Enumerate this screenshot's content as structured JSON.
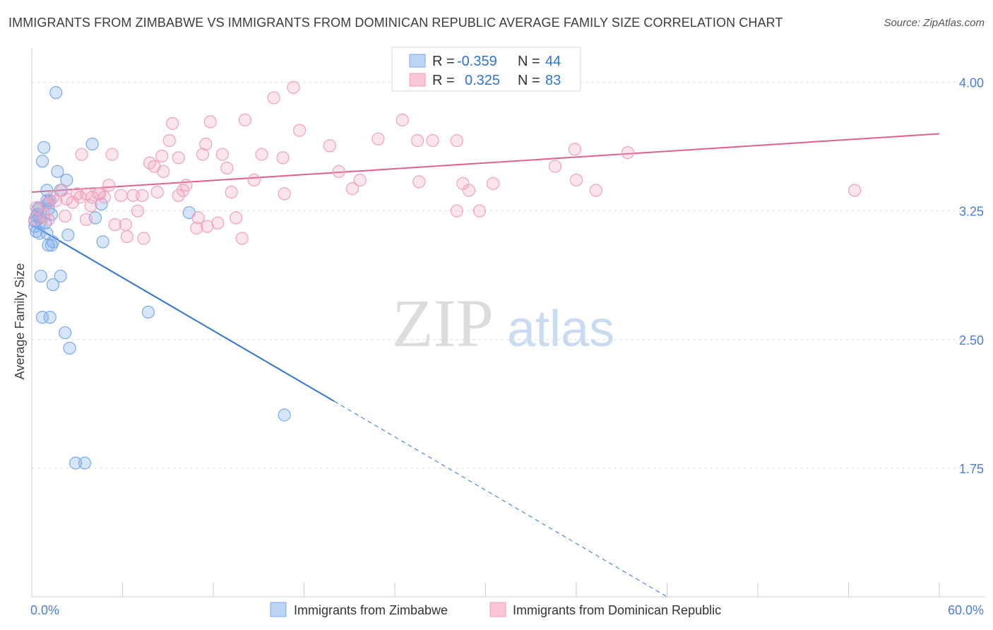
{
  "title": "IMMIGRANTS FROM ZIMBABWE VS IMMIGRANTS FROM DOMINICAN REPUBLIC AVERAGE FAMILY SIZE CORRELATION CHART",
  "source": "Source: ZipAtlas.com",
  "watermark": {
    "zip": "ZIP",
    "atlas": "atlas"
  },
  "chart_data": {
    "type": "scatter",
    "ylabel": "Average Family Size",
    "xlim": [
      0,
      60
    ],
    "ylim": [
      1.0,
      4.2
    ],
    "x_tick_labels": [
      {
        "value": 0,
        "label": "0.0%"
      },
      {
        "value": 60,
        "label": "60.0%"
      }
    ],
    "y_ticks": [
      {
        "value": 4.0,
        "label": "4.00"
      },
      {
        "value": 3.25,
        "label": "3.25"
      },
      {
        "value": 2.5,
        "label": "2.50"
      },
      {
        "value": 1.75,
        "label": "1.75"
      }
    ],
    "grid": "horizontal dashed",
    "legend_position": "bottom-center",
    "stats_box": [
      {
        "r_label": "R =",
        "r": "-0.359",
        "n_label": "N =",
        "n": "44"
      },
      {
        "r_label": "R =",
        "r": "0.325",
        "n_label": "N =",
        "n": "83"
      }
    ],
    "series": [
      {
        "name": "Immigrants from Zimbabwe",
        "color": "#7aaae8",
        "line_color": "#2f74d0",
        "trend": {
          "x0": 0,
          "y0": 3.17,
          "x1": 20,
          "y1": 2.14,
          "dash_to_x": 42,
          "dash_to_y": 1.0
        },
        "points": [
          [
            1.6,
            3.94
          ],
          [
            0.8,
            3.62
          ],
          [
            0.7,
            3.54
          ],
          [
            1.7,
            3.48
          ],
          [
            2.3,
            3.43
          ],
          [
            4.0,
            3.64
          ],
          [
            1.0,
            3.37
          ],
          [
            1.9,
            3.37
          ],
          [
            1.0,
            3.31
          ],
          [
            1.2,
            3.31
          ],
          [
            0.4,
            3.26
          ],
          [
            0.5,
            3.27
          ],
          [
            1.1,
            3.26
          ],
          [
            0.3,
            3.22
          ],
          [
            0.2,
            3.19
          ],
          [
            0.6,
            3.19
          ],
          [
            0.9,
            3.18
          ],
          [
            0.3,
            3.13
          ],
          [
            0.5,
            3.12
          ],
          [
            1.0,
            3.12
          ],
          [
            2.4,
            3.11
          ],
          [
            4.7,
            3.07
          ],
          [
            1.1,
            3.05
          ],
          [
            1.3,
            3.05
          ],
          [
            1.4,
            3.07
          ],
          [
            0.6,
            2.87
          ],
          [
            1.9,
            2.87
          ],
          [
            1.4,
            2.82
          ],
          [
            0.7,
            2.63
          ],
          [
            1.2,
            2.63
          ],
          [
            2.2,
            2.54
          ],
          [
            2.5,
            2.45
          ],
          [
            7.7,
            2.66
          ],
          [
            10.4,
            3.24
          ],
          [
            4.2,
            3.21
          ],
          [
            4.6,
            3.29
          ],
          [
            16.7,
            2.06
          ],
          [
            2.9,
            1.78
          ],
          [
            3.5,
            1.78
          ],
          [
            0.4,
            3.23
          ],
          [
            1.3,
            3.23
          ],
          [
            0.2,
            3.16
          ],
          [
            0.5,
            3.21
          ],
          [
            1.1,
            3.3
          ]
        ]
      },
      {
        "name": "Immigrants from Dominican Republic",
        "color": "#f0a0bb",
        "line_color": "#e0608a",
        "trend": {
          "x0": 0,
          "y0": 3.36,
          "x1": 60,
          "y1": 3.7
        },
        "points": [
          [
            17.3,
            3.97
          ],
          [
            16.0,
            3.91
          ],
          [
            9.3,
            3.76
          ],
          [
            11.8,
            3.77
          ],
          [
            14.1,
            3.78
          ],
          [
            24.5,
            3.78
          ],
          [
            17.7,
            3.72
          ],
          [
            9.1,
            3.66
          ],
          [
            11.5,
            3.64
          ],
          [
            19.7,
            3.63
          ],
          [
            22.9,
            3.67
          ],
          [
            25.5,
            3.66
          ],
          [
            26.5,
            3.66
          ],
          [
            28.1,
            3.66
          ],
          [
            35.9,
            3.61
          ],
          [
            39.4,
            3.59
          ],
          [
            3.3,
            3.58
          ],
          [
            5.3,
            3.58
          ],
          [
            8.6,
            3.57
          ],
          [
            9.7,
            3.56
          ],
          [
            11.3,
            3.58
          ],
          [
            12.6,
            3.58
          ],
          [
            15.2,
            3.58
          ],
          [
            16.6,
            3.56
          ],
          [
            7.8,
            3.53
          ],
          [
            8.1,
            3.51
          ],
          [
            8.7,
            3.48
          ],
          [
            12.9,
            3.5
          ],
          [
            34.6,
            3.51
          ],
          [
            20.3,
            3.48
          ],
          [
            21.7,
            3.43
          ],
          [
            25.6,
            3.42
          ],
          [
            28.5,
            3.41
          ],
          [
            30.5,
            3.41
          ],
          [
            36.0,
            3.43
          ],
          [
            14.7,
            3.43
          ],
          [
            5.1,
            3.4
          ],
          [
            10.2,
            3.4
          ],
          [
            10.0,
            3.37
          ],
          [
            13.2,
            3.36
          ],
          [
            16.7,
            3.35
          ],
          [
            21.2,
            3.38
          ],
          [
            28.9,
            3.37
          ],
          [
            37.3,
            3.37
          ],
          [
            54.4,
            3.37
          ],
          [
            2.0,
            3.37
          ],
          [
            3.0,
            3.35
          ],
          [
            3.6,
            3.35
          ],
          [
            4.5,
            3.35
          ],
          [
            4.8,
            3.33
          ],
          [
            5.9,
            3.34
          ],
          [
            6.7,
            3.34
          ],
          [
            7.3,
            3.34
          ],
          [
            8.3,
            3.36
          ],
          [
            9.7,
            3.34
          ],
          [
            1.4,
            3.33
          ],
          [
            2.3,
            3.32
          ],
          [
            3.2,
            3.33
          ],
          [
            4.0,
            3.33
          ],
          [
            1.0,
            3.29
          ],
          [
            1.6,
            3.31
          ],
          [
            3.9,
            3.28
          ],
          [
            2.7,
            3.3
          ],
          [
            28.1,
            3.25
          ],
          [
            29.6,
            3.25
          ],
          [
            7.0,
            3.25
          ],
          [
            0.3,
            3.27
          ],
          [
            0.8,
            3.22
          ],
          [
            1.1,
            3.2
          ],
          [
            0.2,
            3.2
          ],
          [
            3.6,
            3.2
          ],
          [
            5.5,
            3.17
          ],
          [
            6.2,
            3.17
          ],
          [
            11.0,
            3.21
          ],
          [
            13.5,
            3.21
          ],
          [
            12.3,
            3.18
          ],
          [
            11.6,
            3.16
          ],
          [
            10.9,
            3.15
          ],
          [
            6.3,
            3.1
          ],
          [
            7.4,
            3.09
          ],
          [
            13.9,
            3.09
          ],
          [
            2.2,
            3.22
          ],
          [
            4.4,
            3.35
          ]
        ]
      }
    ]
  }
}
